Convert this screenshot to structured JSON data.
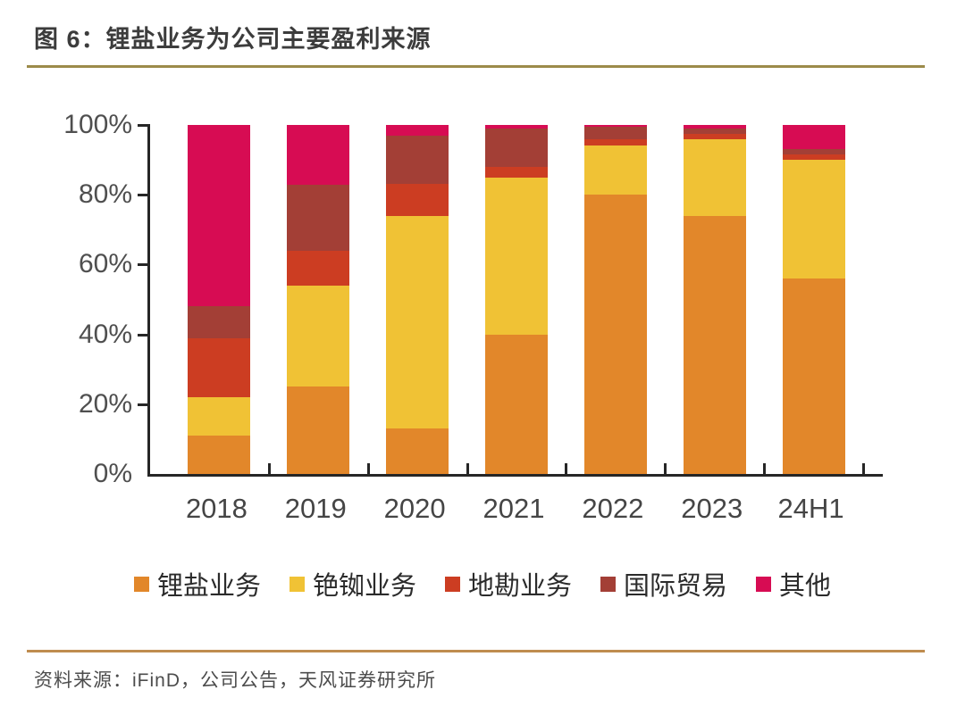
{
  "header": {
    "title": "图 6：锂盐业务为公司主要盈利来源"
  },
  "footer": {
    "source": "资料来源：iFinD，公司公告，天风证券研究所"
  },
  "colors": {
    "title_rule": "#9c8b4a",
    "footer_rule": "#bf8c4f",
    "axis": "#262626",
    "lithium_orange": "#e2872a",
    "cesium_yellow": "#f0c235",
    "geology_red": "#cc3d22",
    "trade_maroon": "#a33f36",
    "other_pink": "#d70c53"
  },
  "chart_data": {
    "type": "bar",
    "subtype": "stacked-percent",
    "title": "图 6：锂盐业务为公司主要盈利来源",
    "xlabel": "",
    "ylabel": "",
    "y_unit": "%",
    "ylim": [
      0,
      100
    ],
    "y_ticks": [
      0,
      20,
      40,
      60,
      80,
      100
    ],
    "grid": false,
    "legend_position": "bottom",
    "categories": [
      "2018",
      "2019",
      "2020",
      "2021",
      "2022",
      "2023",
      "24H1"
    ],
    "series": [
      {
        "name": "锂盐业务",
        "color": "#e2872a",
        "values": [
          11,
          25,
          13,
          40,
          80,
          74,
          56
        ]
      },
      {
        "name": "铯铷业务",
        "color": "#f0c235",
        "values": [
          11,
          29,
          61,
          45,
          14,
          22,
          34
        ]
      },
      {
        "name": "地勘业务",
        "color": "#cc3d22",
        "values": [
          17,
          10,
          9,
          3,
          2,
          1.5,
          1.5
        ]
      },
      {
        "name": "国际贸易",
        "color": "#a33f36",
        "values": [
          9,
          19,
          14,
          11,
          3.5,
          1.5,
          1.5
        ]
      },
      {
        "name": "其他",
        "color": "#d70c53",
        "values": [
          52,
          17,
          3,
          1,
          0.5,
          1,
          7
        ]
      }
    ]
  }
}
